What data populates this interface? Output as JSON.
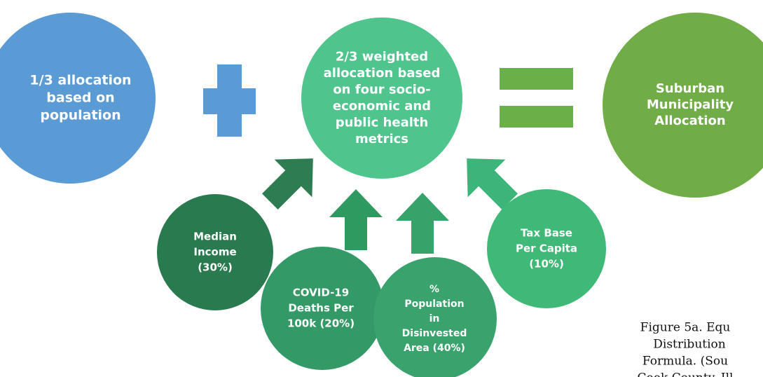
{
  "nodes": [
    {
      "lines": [
        "1/3 allocation",
        "based on",
        "population"
      ]
    },
    {
      "lines": [
        "2/3 weighted",
        "allocation based",
        "on four socio-",
        "economic and",
        "public health",
        "metrics"
      ]
    },
    {
      "lines": [
        "Suburban",
        "Municipality",
        "Allocation"
      ]
    },
    {
      "lines": [
        "Median",
        "Income",
        "(30%)"
      ]
    },
    {
      "lines": [
        "COVID-19",
        "Deaths Per",
        "100k (20%)"
      ]
    },
    {
      "lines": [
        "%",
        "Population",
        "in",
        "Disinvested",
        "Area (40%)"
      ]
    },
    {
      "lines": [
        "Tax Base",
        "Per Capita",
        "(10%)"
      ]
    }
  ],
  "caption": {
    "lines": [
      "Figure 5a. Equ",
      "Distribution",
      "Formula. (Sou",
      "Cook County, Ill"
    ]
  }
}
